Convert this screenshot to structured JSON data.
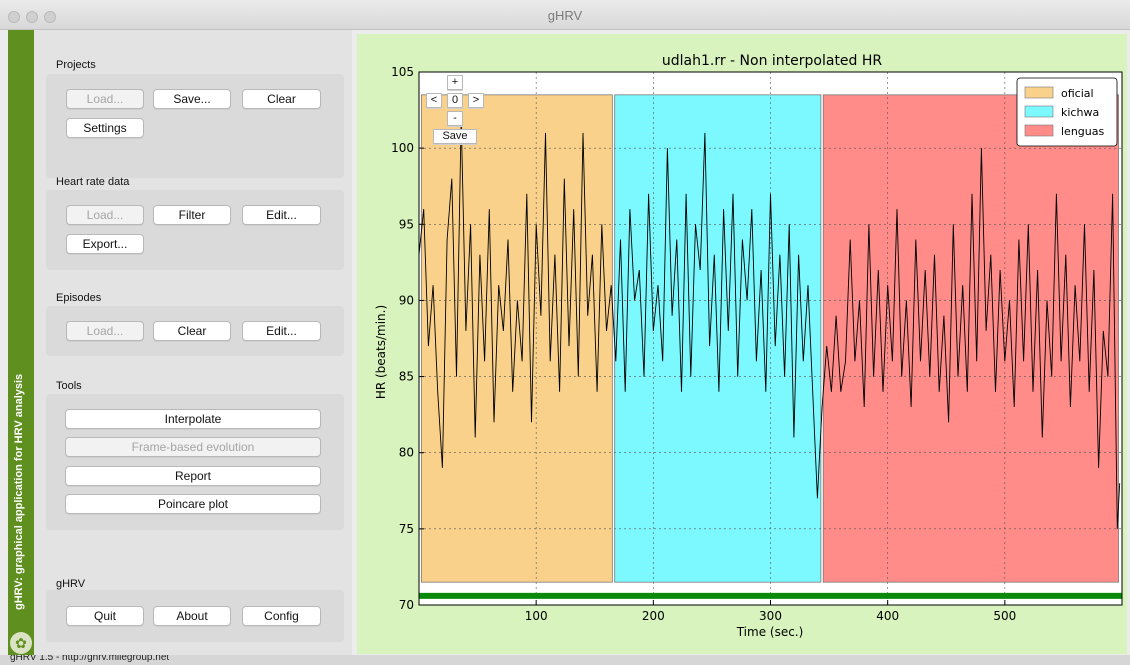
{
  "window": {
    "title": "gHRV"
  },
  "sidestrip": {
    "text": "gHRV: graphical application for HRV analysis"
  },
  "sections": {
    "projects": {
      "title": "Projects",
      "load": "Load...",
      "save": "Save...",
      "clear": "Clear",
      "settings": "Settings"
    },
    "heart_rate": {
      "title": "Heart rate data",
      "load": "Load...",
      "filter": "Filter",
      "edit": "Edit...",
      "export": "Export..."
    },
    "episodes": {
      "title": "Episodes",
      "load": "Load...",
      "clear": "Clear",
      "edit": "Edit..."
    },
    "tools": {
      "title": "Tools",
      "interpolate": "Interpolate",
      "frame_based": "Frame-based evolution",
      "report": "Report",
      "poincare": "Poincare plot"
    },
    "ghrv": {
      "title": "gHRV",
      "quit": "Quit",
      "about": "About",
      "config": "Config"
    }
  },
  "plot_toolbar": {
    "zoom_in": "+",
    "left": "<",
    "reset": "0",
    "right": ">",
    "zoom_out": "-",
    "save": "Save"
  },
  "status": {
    "text": "gHRV 1.5 - http://ghrv.milegroup.net"
  },
  "chart_data": {
    "type": "line",
    "title": "udlah1.rr - Non interpolated HR",
    "xlabel": "Time (sec.)",
    "ylabel": "HR (beats/min.)",
    "xlim": [
      0,
      600
    ],
    "ylim": [
      70,
      105
    ],
    "xticks": [
      100,
      200,
      300,
      400,
      500
    ],
    "yticks": [
      70,
      75,
      80,
      85,
      90,
      95,
      100,
      105
    ],
    "grid": true,
    "legend_position": "top-right",
    "episodes": [
      {
        "name": "oficial",
        "start": 2,
        "end": 165,
        "color": "#f9d18b"
      },
      {
        "name": "kichwa",
        "start": 167,
        "end": 343,
        "color": "#7bf9ff"
      },
      {
        "name": "lenguas",
        "start": 345,
        "end": 597,
        "color": "#ff8c89"
      }
    ],
    "episode_y_range": [
      71.5,
      103.5
    ],
    "series": [
      {
        "line_color": "#000000",
        "x": [
          0,
          4,
          8,
          12,
          16,
          20,
          24,
          28,
          32,
          36,
          40,
          44,
          48,
          52,
          56,
          60,
          64,
          68,
          72,
          76,
          80,
          84,
          88,
          92,
          96,
          100,
          104,
          108,
          112,
          116,
          120,
          124,
          128,
          132,
          136,
          140,
          144,
          148,
          152,
          156,
          160,
          164,
          168,
          172,
          176,
          180,
          184,
          188,
          192,
          196,
          200,
          204,
          208,
          212,
          216,
          220,
          224,
          228,
          232,
          236,
          240,
          244,
          248,
          252,
          256,
          260,
          264,
          268,
          272,
          276,
          280,
          284,
          288,
          292,
          296,
          300,
          304,
          308,
          312,
          316,
          320,
          324,
          328,
          332,
          336,
          340,
          342,
          344,
          348,
          352,
          356,
          360,
          364,
          368,
          372,
          376,
          380,
          384,
          388,
          392,
          396,
          400,
          404,
          408,
          412,
          416,
          420,
          424,
          428,
          432,
          436,
          440,
          444,
          448,
          452,
          456,
          460,
          464,
          468,
          472,
          476,
          480,
          484,
          488,
          492,
          496,
          500,
          504,
          508,
          512,
          516,
          520,
          524,
          528,
          532,
          536,
          540,
          544,
          548,
          552,
          556,
          560,
          564,
          568,
          572,
          576,
          580,
          584,
          588,
          592,
          596,
          598
        ],
        "y": [
          93,
          96,
          87,
          91,
          84,
          79,
          94,
          98,
          85,
          102,
          88,
          95,
          81,
          93,
          86,
          96,
          82,
          91,
          88,
          94,
          84,
          90,
          86,
          97,
          82,
          95,
          89,
          101,
          86,
          93,
          84,
          98,
          87,
          96,
          85,
          101,
          89,
          93,
          84,
          95,
          88,
          91,
          86,
          94,
          84,
          96,
          90,
          92,
          85,
          97,
          88,
          91,
          86,
          100,
          89,
          94,
          84,
          97,
          85,
          95,
          92,
          101,
          87,
          93,
          84,
          96,
          88,
          97,
          85,
          94,
          90,
          96,
          86,
          92,
          84,
          97,
          87,
          93,
          85,
          95,
          81,
          93,
          86,
          91,
          84,
          77,
          80,
          83,
          87,
          84,
          89,
          84,
          86,
          94,
          86,
          90,
          83,
          95,
          85,
          92,
          84,
          91,
          86,
          96,
          85,
          90,
          83,
          94,
          86,
          92,
          85,
          93,
          84,
          89,
          82,
          95,
          85,
          91,
          84,
          97,
          86,
          100,
          88,
          93,
          84,
          92,
          86,
          90,
          83,
          94,
          86,
          95,
          84,
          92,
          81,
          90,
          85,
          97,
          86,
          93,
          83,
          91,
          86,
          95,
          84,
          92,
          79,
          88,
          85,
          97,
          75,
          78
        ]
      }
    ]
  }
}
